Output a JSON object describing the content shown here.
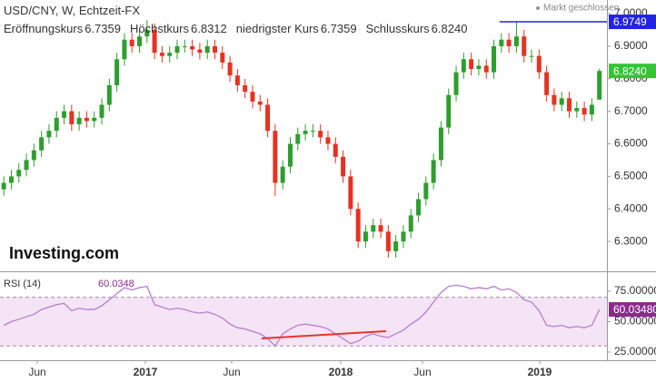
{
  "chart_data": [
    {
      "type": "candlestick",
      "title": "USD/CNY, W, Echtzeit-FX",
      "status": "Markt geschlossen",
      "logo": "Investing.com",
      "legend": [
        {
          "label": "Eröffnungskurs",
          "value": "6.7359"
        },
        {
          "label": "Höchstkurs",
          "value": "6.8312"
        },
        {
          "label": "niedrigster Kurs",
          "value": "6.7359"
        },
        {
          "label": "Schlusskurs",
          "value": "6.8240"
        }
      ],
      "up_color": "#2e9e2e",
      "down_color": "#e53321",
      "xlim": [
        0,
        161
      ],
      "ylim": [
        6.211,
        7.042
      ],
      "yticks": [
        {
          "value": 6.3,
          "label": "6.3000"
        },
        {
          "value": 6.4,
          "label": "6.4000"
        },
        {
          "value": 6.5,
          "label": "6.5000"
        },
        {
          "value": 6.6,
          "label": "6.6000"
        },
        {
          "value": 6.7,
          "label": "6.7000"
        },
        {
          "value": 6.8,
          "label": "6.8000"
        },
        {
          "value": 6.9,
          "label": "6.9000"
        },
        {
          "value": 7.0,
          "label": "7.0000"
        }
      ],
      "x": [
        1,
        3,
        5,
        7,
        9,
        11,
        13,
        15,
        17,
        19,
        21,
        23,
        25,
        27,
        29,
        31,
        33,
        35,
        37,
        39,
        41,
        43,
        45,
        47,
        49,
        51,
        53,
        55,
        57,
        59,
        61,
        63,
        65,
        67,
        69,
        71,
        73,
        75,
        77,
        79,
        81,
        83,
        85,
        87,
        89,
        91,
        93,
        95,
        97,
        99,
        101,
        103,
        105,
        107,
        109,
        111,
        113,
        115,
        117,
        119,
        121,
        123,
        125,
        127,
        129,
        131,
        133,
        135,
        137,
        139,
        141,
        143,
        145,
        147,
        149,
        151,
        153,
        155,
        157,
        159
      ],
      "open": [
        6.46,
        6.48,
        6.5,
        6.52,
        6.55,
        6.58,
        6.62,
        6.64,
        6.68,
        6.7,
        6.66,
        6.68,
        6.67,
        6.68,
        6.72,
        6.78,
        6.86,
        6.92,
        6.9,
        6.93,
        6.95,
        6.88,
        6.87,
        6.88,
        6.9,
        6.9,
        6.89,
        6.88,
        6.9,
        6.88,
        6.85,
        6.81,
        6.78,
        6.76,
        6.73,
        6.72,
        6.64,
        6.48,
        6.53,
        6.6,
        6.63,
        6.64,
        6.64,
        6.62,
        6.6,
        6.56,
        6.5,
        6.4,
        6.3,
        6.33,
        6.35,
        6.33,
        6.27,
        6.3,
        6.33,
        6.38,
        6.43,
        6.48,
        6.55,
        6.65,
        6.75,
        6.82,
        6.86,
        6.83,
        6.84,
        6.82,
        6.9,
        6.92,
        6.9,
        6.93,
        6.87,
        6.87,
        6.82,
        6.75,
        6.72,
        6.74,
        6.7,
        6.71,
        6.69,
        6.7359
      ],
      "high": [
        6.5,
        6.52,
        6.54,
        6.57,
        6.6,
        6.64,
        6.66,
        6.7,
        6.72,
        6.72,
        6.7,
        6.7,
        6.7,
        6.74,
        6.8,
        6.88,
        6.94,
        6.94,
        6.95,
        6.98,
        6.97,
        6.9,
        6.9,
        6.92,
        6.92,
        6.92,
        6.91,
        6.92,
        6.92,
        6.9,
        6.87,
        6.83,
        6.8,
        6.78,
        6.75,
        6.74,
        6.66,
        6.55,
        6.62,
        6.65,
        6.66,
        6.66,
        6.66,
        6.64,
        6.62,
        6.58,
        6.52,
        6.42,
        6.35,
        6.37,
        6.37,
        6.35,
        6.32,
        6.35,
        6.4,
        6.45,
        6.5,
        6.57,
        6.67,
        6.77,
        6.84,
        6.88,
        6.88,
        6.86,
        6.86,
        6.92,
        6.94,
        6.94,
        6.9749,
        6.95,
        6.89,
        6.89,
        6.84,
        6.77,
        6.76,
        6.76,
        6.73,
        6.73,
        6.74,
        6.8312
      ],
      "low": [
        6.44,
        6.46,
        6.48,
        6.5,
        6.53,
        6.56,
        6.6,
        6.62,
        6.66,
        6.64,
        6.64,
        6.65,
        6.65,
        6.66,
        6.7,
        6.76,
        6.84,
        6.88,
        6.88,
        6.91,
        6.86,
        6.85,
        6.85,
        6.86,
        6.88,
        6.87,
        6.86,
        6.86,
        6.86,
        6.83,
        6.79,
        6.76,
        6.74,
        6.71,
        6.7,
        6.62,
        6.44,
        6.46,
        6.51,
        6.58,
        6.61,
        6.62,
        6.6,
        6.58,
        6.54,
        6.48,
        6.38,
        6.28,
        6.28,
        6.31,
        6.31,
        6.25,
        6.25,
        6.28,
        6.31,
        6.36,
        6.41,
        6.46,
        6.53,
        6.63,
        6.73,
        6.8,
        6.81,
        6.81,
        6.8,
        6.8,
        6.88,
        6.88,
        6.88,
        6.85,
        6.85,
        6.8,
        6.73,
        6.7,
        6.7,
        6.68,
        6.68,
        6.67,
        6.67,
        6.7359
      ],
      "close": [
        6.48,
        6.5,
        6.52,
        6.55,
        6.58,
        6.62,
        6.64,
        6.68,
        6.7,
        6.66,
        6.68,
        6.67,
        6.68,
        6.72,
        6.78,
        6.86,
        6.92,
        6.9,
        6.93,
        6.95,
        6.88,
        6.87,
        6.88,
        6.9,
        6.9,
        6.89,
        6.88,
        6.9,
        6.88,
        6.85,
        6.81,
        6.78,
        6.76,
        6.73,
        6.72,
        6.64,
        6.48,
        6.53,
        6.6,
        6.63,
        6.64,
        6.64,
        6.62,
        6.6,
        6.56,
        6.5,
        6.4,
        6.3,
        6.33,
        6.35,
        6.33,
        6.27,
        6.3,
        6.33,
        6.38,
        6.43,
        6.48,
        6.55,
        6.65,
        6.75,
        6.82,
        6.86,
        6.83,
        6.84,
        6.82,
        6.9,
        6.92,
        6.9,
        6.93,
        6.87,
        6.87,
        6.82,
        6.75,
        6.72,
        6.74,
        6.7,
        6.71,
        6.69,
        6.72,
        6.824
      ],
      "high_line": {
        "value": 6.9749,
        "label": "6.9749",
        "x": 132.5,
        "color": "#2323e8"
      },
      "last_label": {
        "value": 6.824,
        "label": "6.8240",
        "color": "#35c435"
      }
    },
    {
      "type": "line",
      "title": "RSI (14)",
      "current": "60.0348",
      "color": "#b77fcc",
      "band": [
        30,
        70
      ],
      "band_color": "#f4e4f6",
      "xlim": [
        0,
        161
      ],
      "ylim": [
        18.3,
        88.4
      ],
      "yticks": [
        {
          "value": 25,
          "label": "25.00000"
        },
        {
          "value": 50,
          "label": "50.00000"
        },
        {
          "value": 75,
          "label": "75.00000"
        }
      ],
      "xticks": [
        {
          "value": 9.88,
          "label": "Jun"
        },
        {
          "value": 38.56,
          "label": "2017"
        },
        {
          "value": 61.46,
          "label": "Jun"
        },
        {
          "value": 90.38,
          "label": "2018"
        },
        {
          "value": 112.07,
          "label": "Jun"
        },
        {
          "value": 143.16,
          "label": "2019"
        }
      ],
      "x": [
        1,
        3,
        5,
        7,
        9,
        11,
        13,
        15,
        17,
        19,
        21,
        23,
        25,
        27,
        29,
        31,
        33,
        35,
        37,
        39,
        41,
        43,
        45,
        47,
        49,
        51,
        53,
        55,
        57,
        59,
        61,
        63,
        65,
        67,
        69,
        71,
        73,
        75,
        77,
        79,
        81,
        83,
        85,
        87,
        89,
        91,
        93,
        95,
        97,
        99,
        101,
        103,
        105,
        107,
        109,
        111,
        113,
        115,
        117,
        119,
        121,
        123,
        125,
        127,
        129,
        131,
        133,
        135,
        137,
        139,
        141,
        143,
        145,
        147,
        149,
        151,
        153,
        155,
        157,
        159
      ],
      "values": [
        47,
        50,
        52,
        54,
        56,
        60,
        62,
        64,
        65,
        59,
        61,
        60,
        60,
        63,
        68,
        73,
        78,
        76,
        78,
        79,
        64,
        62,
        60,
        61,
        60,
        58,
        57,
        58,
        56,
        53,
        48,
        45,
        44,
        42,
        40,
        36,
        30,
        40,
        44,
        47,
        48,
        47,
        46,
        44,
        40,
        36,
        32,
        34,
        38,
        40,
        38,
        37,
        40,
        43,
        48,
        52,
        58,
        66,
        74,
        79,
        80,
        79,
        77,
        78,
        77,
        79,
        76,
        77,
        74,
        68,
        66,
        59,
        47,
        46,
        47,
        45,
        46,
        45,
        47,
        60.0348
      ],
      "trend_line": {
        "x": [
          69.4,
          102.4
        ],
        "y": [
          36.2,
          42.2
        ],
        "color": "#e8352a"
      },
      "last_label": {
        "value": 60.0348,
        "label": "60.03480",
        "color": "#8c2a8e"
      }
    }
  ]
}
